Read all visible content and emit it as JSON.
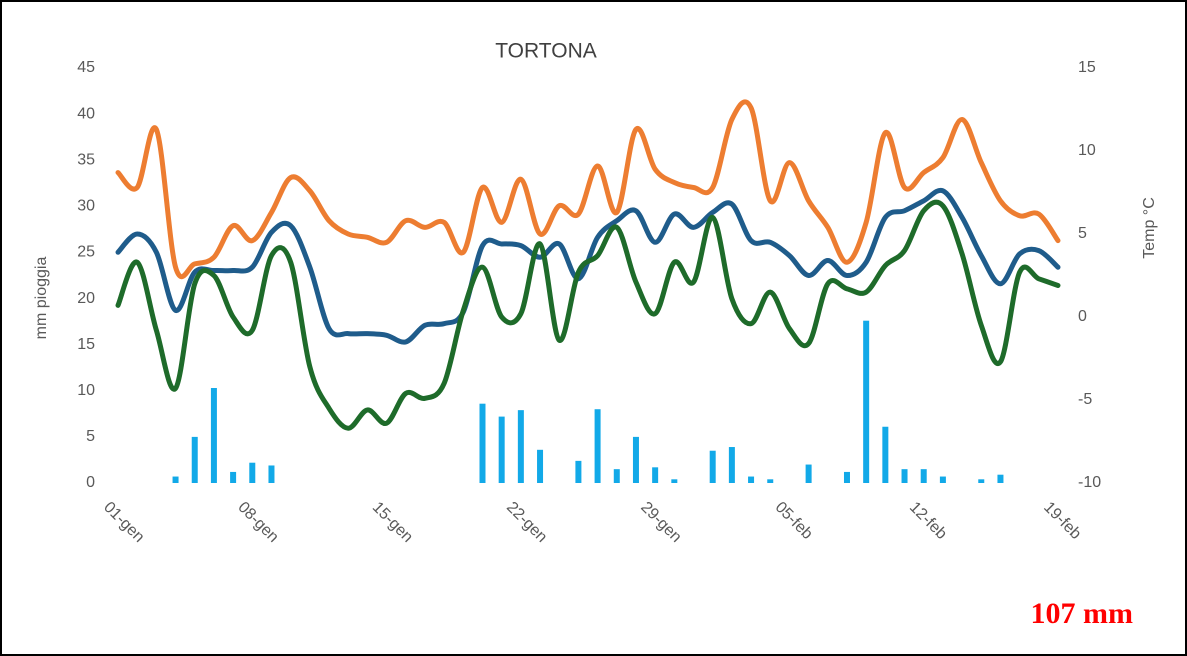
{
  "chart_data": {
    "type": "bar",
    "title": "TORTONA",
    "y_label": "mm pioggia",
    "y2_label": "Temp °C",
    "annotation": "107 mm",
    "categories": [
      "01-gen",
      null,
      null,
      null,
      null,
      null,
      null,
      "08-gen",
      null,
      null,
      null,
      null,
      null,
      null,
      "15-gen",
      null,
      null,
      null,
      null,
      null,
      null,
      "22-gen",
      null,
      null,
      null,
      null,
      null,
      null,
      "29-gen",
      null,
      null,
      null,
      null,
      null,
      null,
      "05-feb",
      null,
      null,
      null,
      null,
      null,
      null,
      "12-feb",
      null,
      null,
      null,
      null,
      null,
      null,
      "19-feb"
    ],
    "ylim": [
      0,
      45
    ],
    "yticks": [
      0,
      5,
      10,
      15,
      20,
      25,
      30,
      35,
      40,
      45
    ],
    "y2lim": [
      -10,
      15
    ],
    "y2ticks": [
      -10,
      -5,
      0,
      5,
      10,
      15
    ],
    "grid": false,
    "series": [
      {
        "type": "bar",
        "axis": "y",
        "color": "#12a9e8",
        "values": [
          0,
          0,
          0,
          0.7,
          5,
          10.3,
          1.2,
          2.2,
          1.9,
          0,
          0,
          0,
          0,
          0,
          0,
          0,
          0,
          0,
          0,
          8.6,
          7.2,
          7.9,
          3.6,
          0,
          2.4,
          8,
          1.5,
          5,
          1.7,
          0.4,
          0,
          3.5,
          3.9,
          0.7,
          0.4,
          0,
          2,
          0,
          1.2,
          17.6,
          6.1,
          1.5,
          1.5,
          0.7,
          0,
          0.4,
          0.9,
          0,
          0,
          0
        ]
      },
      {
        "type": "line",
        "axis": "y2",
        "color": "#ed7d31",
        "values": [
          8.7,
          7.8,
          11.3,
          3.0,
          3.2,
          3.6,
          5.5,
          4.6,
          6.3,
          8.4,
          7.6,
          5.8,
          5.0,
          4.8,
          4.5,
          5.8,
          5.4,
          5.7,
          3.9,
          7.8,
          5.7,
          8.3,
          5.0,
          6.7,
          6.2,
          9.1,
          6.3,
          11.3,
          8.9,
          8.1,
          7.8,
          7.8,
          11.9,
          12.6,
          7.0,
          9.3,
          7.0,
          5.4,
          3.3,
          5.7,
          11.1,
          7.8,
          8.7,
          9.6,
          11.9,
          9.3,
          7.0,
          6.1,
          6.2,
          4.6
        ]
      },
      {
        "type": "line",
        "axis": "y2",
        "color": "#1f5c8b",
        "values": [
          3.9,
          5.0,
          3.9,
          0.4,
          2.7,
          2.8,
          2.8,
          3.0,
          5.1,
          5.5,
          3.0,
          -0.7,
          -1.0,
          -1.0,
          -1.1,
          -1.5,
          -0.5,
          -0.4,
          0.3,
          4.3,
          4.4,
          4.3,
          3.6,
          4.4,
          2.3,
          4.8,
          5.8,
          6.4,
          4.5,
          6.2,
          5.4,
          6.3,
          6.8,
          4.6,
          4.5,
          3.7,
          2.5,
          3.4,
          2.5,
          3.3,
          6.0,
          6.4,
          7.0,
          7.6,
          6.0,
          3.7,
          2.0,
          3.8,
          4.0,
          3.0
        ]
      },
      {
        "type": "line",
        "axis": "y2",
        "color": "#1e6b2a",
        "values": [
          0.7,
          3.3,
          -0.8,
          -4.3,
          2.0,
          2.5,
          0.0,
          -0.8,
          3.7,
          3.3,
          -3.0,
          -5.5,
          -6.7,
          -5.6,
          -6.4,
          -4.6,
          -4.9,
          -4.0,
          0.4,
          3.0,
          0.0,
          0.2,
          4.4,
          -1.4,
          2.7,
          3.7,
          5.4,
          2.1,
          0.2,
          3.3,
          2.1,
          6.0,
          1.1,
          -0.4,
          1.5,
          -0.7,
          -1.6,
          2.0,
          1.7,
          1.5,
          3.1,
          4.0,
          6.4,
          6.7,
          3.8,
          -0.5,
          -2.7,
          2.7,
          2.3,
          1.9
        ]
      }
    ]
  }
}
